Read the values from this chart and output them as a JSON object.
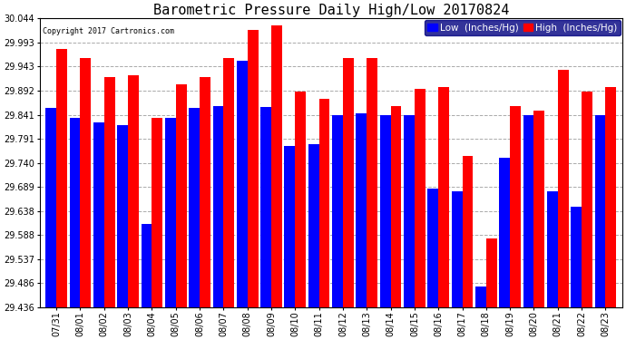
{
  "title": "Barometric Pressure Daily High/Low 20170824",
  "copyright": "Copyright 2017 Cartronics.com",
  "dates": [
    "07/31",
    "08/01",
    "08/02",
    "08/03",
    "08/04",
    "08/05",
    "08/06",
    "08/07",
    "08/08",
    "08/09",
    "08/10",
    "08/11",
    "08/12",
    "08/13",
    "08/14",
    "08/15",
    "08/16",
    "08/17",
    "08/18",
    "08/19",
    "08/20",
    "08/21",
    "08/22",
    "08/23"
  ],
  "low_values": [
    29.855,
    29.835,
    29.825,
    29.82,
    29.612,
    29.835,
    29.855,
    29.86,
    29.955,
    29.858,
    29.775,
    29.78,
    29.84,
    29.845,
    29.84,
    29.84,
    29.685,
    29.68,
    29.48,
    29.75,
    29.84,
    29.68,
    29.648,
    29.84
  ],
  "high_values": [
    29.98,
    29.96,
    29.92,
    29.925,
    29.835,
    29.905,
    29.92,
    29.96,
    30.02,
    30.03,
    29.89,
    29.875,
    29.96,
    29.96,
    29.86,
    29.895,
    29.9,
    29.755,
    29.58,
    29.86,
    29.85,
    29.935,
    29.89,
    29.9
  ],
  "low_color": "#0000ff",
  "high_color": "#ff0000",
  "background_color": "#ffffff",
  "ylim_min": 29.436,
  "ylim_max": 30.044,
  "yticks": [
    29.436,
    29.486,
    29.537,
    29.588,
    29.638,
    29.689,
    29.74,
    29.791,
    29.841,
    29.892,
    29.943,
    29.993,
    30.044
  ],
  "grid_color": "#aaaaaa",
  "bar_width": 0.45,
  "title_fontsize": 11,
  "tick_fontsize": 7,
  "legend_fontsize": 7.5
}
